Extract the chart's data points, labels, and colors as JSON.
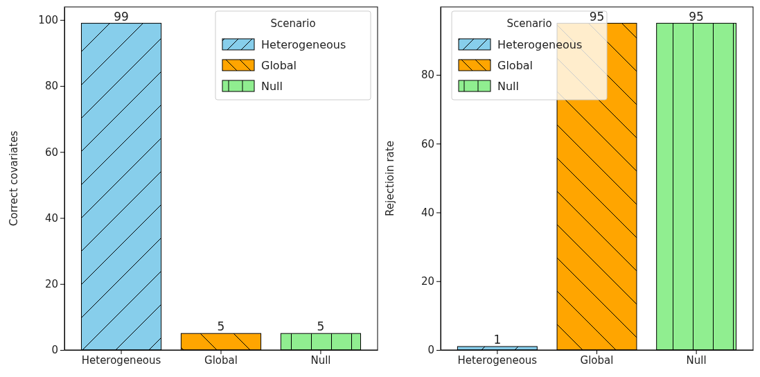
{
  "chart_data": [
    {
      "type": "bar",
      "categories": [
        "Heterogeneous",
        "Global",
        "Null"
      ],
      "ylabel": "Correct covariates",
      "ylim": [
        0,
        103.95
      ],
      "yticks": [
        0,
        20,
        40,
        60,
        80,
        100
      ],
      "data_labels": true,
      "legend": "top right",
      "legend_title": "Scenario",
      "series": [
        {
          "name": "Heterogeneous",
          "color": "#87ceeb",
          "values": [
            99,
            null,
            null
          ]
        },
        {
          "name": "Global",
          "color": "#ffa500",
          "values": [
            null,
            5,
            null
          ]
        },
        {
          "name": "Null",
          "color": "#90ee90",
          "values": [
            null,
            null,
            5
          ]
        }
      ]
    },
    {
      "type": "bar",
      "categories": [
        "Heterogeneous",
        "Global",
        "Null"
      ],
      "ylabel": "Rejectioin rate",
      "ylim": [
        0,
        99.75
      ],
      "yticks": [
        0,
        20,
        40,
        60,
        80
      ],
      "data_labels": true,
      "legend": "top left",
      "legend_title": "Scenario",
      "series": [
        {
          "name": "Heterogeneous",
          "color": "#87ceeb",
          "values": [
            1,
            null,
            null
          ]
        },
        {
          "name": "Global",
          "color": "#ffa500",
          "values": [
            null,
            95,
            null
          ]
        },
        {
          "name": "Null",
          "color": "#90ee90",
          "values": [
            null,
            null,
            95
          ]
        }
      ]
    }
  ]
}
